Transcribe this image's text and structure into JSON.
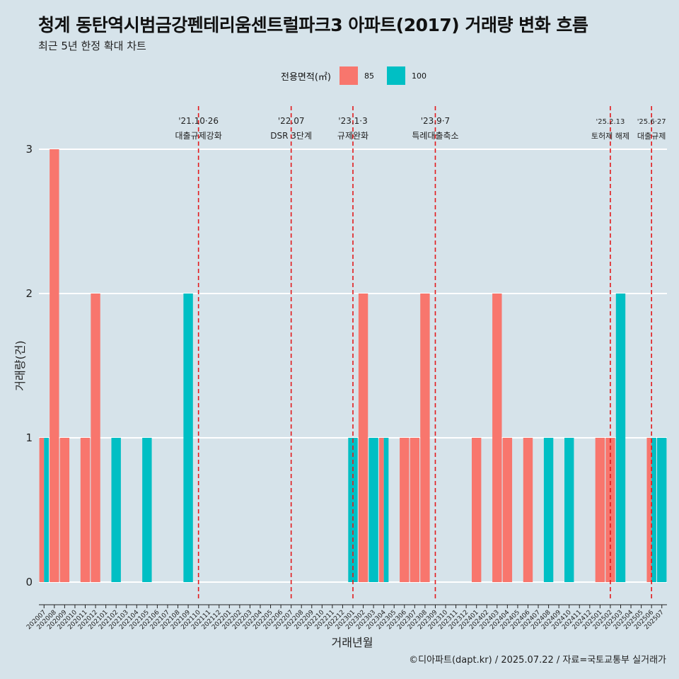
{
  "title": "청계 동탄역시범금강펜테리움센트럴파크3 아파트(2017) 거래량 변화 흐름",
  "subtitle": "최근 5년 한정 확대 차트",
  "caption": "©디아파트(dapt.kr) / 2025.07.22 / 자료=국토교통부 실거래가",
  "colors": {
    "background": "#d6e3ea",
    "series_85": "#f8766d",
    "series_100": "#00bfc4",
    "event_line": "#e31a1c",
    "grid": "#ffffff"
  },
  "chart_data": {
    "type": "bar",
    "xlabel": "거래년월",
    "ylabel": "거래량(건)",
    "ylim": [
      0,
      3
    ],
    "yticks": [
      0,
      1,
      2,
      3
    ],
    "legend": {
      "title": "전용면적(㎡)",
      "position": "top"
    },
    "categories": [
      "202007",
      "202008",
      "202009",
      "202010",
      "202011",
      "202012",
      "202101",
      "202102",
      "202103",
      "202104",
      "202105",
      "202106",
      "202107",
      "202108",
      "202109",
      "202110",
      "202111",
      "202112",
      "202201",
      "202202",
      "202203",
      "202204",
      "202205",
      "202206",
      "202207",
      "202208",
      "202209",
      "202210",
      "202211",
      "202212",
      "202301",
      "202302",
      "202303",
      "202304",
      "202305",
      "202306",
      "202307",
      "202308",
      "202309",
      "202310",
      "202311",
      "202312",
      "202401",
      "202402",
      "202403",
      "202404",
      "202405",
      "202406",
      "202407",
      "202408",
      "202409",
      "202410",
      "202411",
      "202412",
      "202501",
      "202502",
      "202503",
      "202504",
      "202505",
      "202506",
      "202507"
    ],
    "series": [
      {
        "name": "85",
        "values": [
          1,
          3,
          1,
          0,
          1,
          2,
          0,
          0,
          0,
          0,
          0,
          0,
          0,
          0,
          0,
          0,
          0,
          0,
          0,
          0,
          0,
          0,
          0,
          0,
          0,
          0,
          0,
          0,
          0,
          0,
          0,
          2,
          0,
          1,
          0,
          1,
          1,
          2,
          0,
          0,
          0,
          0,
          1,
          0,
          2,
          1,
          0,
          1,
          0,
          0,
          0,
          0,
          0,
          0,
          1,
          1,
          0,
          0,
          0,
          1,
          0
        ]
      },
      {
        "name": "100",
        "values": [
          1,
          0,
          0,
          0,
          0,
          0,
          0,
          1,
          0,
          0,
          1,
          0,
          0,
          0,
          2,
          0,
          0,
          0,
          0,
          0,
          0,
          0,
          0,
          0,
          0,
          0,
          0,
          0,
          0,
          0,
          1,
          0,
          1,
          1,
          0,
          0,
          0,
          0,
          0,
          0,
          0,
          0,
          0,
          0,
          0,
          0,
          0,
          0,
          0,
          1,
          0,
          1,
          0,
          0,
          0,
          0,
          2,
          0,
          0,
          1,
          1
        ]
      }
    ],
    "events": [
      {
        "x": "202110",
        "date": "'21.10·26",
        "label": "대출규제강화"
      },
      {
        "x": "202207",
        "date": "'22.07",
        "label": "DSR 3단계"
      },
      {
        "x": "202301",
        "date": "'23.1·3",
        "label": "규제완화"
      },
      {
        "x": "202309",
        "date": "'23.9·7",
        "label": "특례대출축소"
      },
      {
        "x": "202502",
        "date": "'25.2.13",
        "label": "토허제 해제"
      },
      {
        "x": "202506",
        "date": "'25.6·27",
        "label": "대출규제"
      }
    ]
  }
}
